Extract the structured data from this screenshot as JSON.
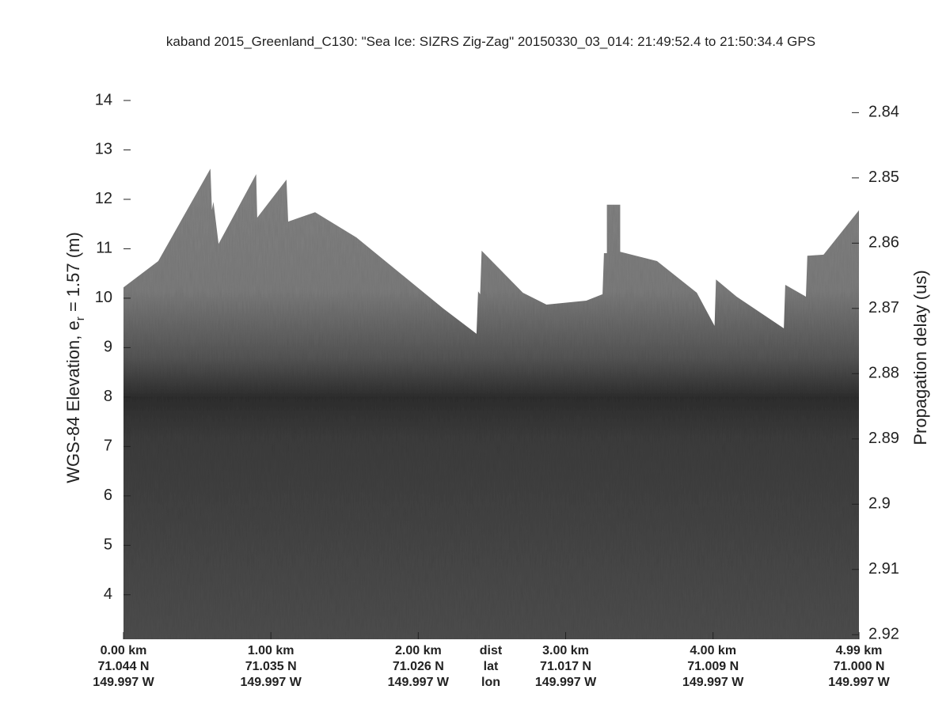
{
  "chart_data": {
    "type": "echogram",
    "title": "kaband 2015_Greenland_C130: \"Sea Ice: SIZRS Zig-Zag\"  20150330_03_014: 21:49:52.4 to 21:50:34.4 GPS",
    "ylabel": [
      "WGS-84 Elevation, e",
      "r",
      " = 1.57 (m)"
    ],
    "y2label": "Propagation delay (us)",
    "xlim": [
      0,
      4.99
    ],
    "xticks": [
      {
        "value": 0,
        "label": "0.00 km"
      },
      {
        "value": 1,
        "label": "1.00 km"
      },
      {
        "value": 2,
        "label": "2.00 km"
      },
      {
        "value": 3,
        "label": "3.00 km"
      },
      {
        "value": 4,
        "label": "4.00 km"
      },
      {
        "value": 4.99,
        "label": "4.99 km"
      }
    ],
    "xtick_lat": [
      "71.044 N",
      "71.035 N",
      "71.026 N",
      "71.017 N",
      "71.009 N",
      "71.000 N"
    ],
    "xtick_lon": [
      "149.997 W",
      "149.997 W",
      "149.997 W",
      "149.997 W",
      "149.997 W",
      "149.997 W"
    ],
    "xaxis_labels": [
      "dist",
      "lat",
      "lon"
    ],
    "ylim": [
      3.1,
      14.48
    ],
    "yticks": [
      4,
      5,
      6,
      7,
      8,
      9,
      10,
      11,
      12,
      13,
      14
    ],
    "y2lim": [
      2.9207,
      2.8345
    ],
    "y2ticks": [
      2.84,
      2.85,
      2.86,
      2.87,
      2.88,
      2.89,
      2.9,
      2.91,
      2.92
    ],
    "series": [
      {
        "name": "surface",
        "color": "#858585",
        "x": [
          0,
          0.236,
          0.59,
          0.6,
          0.61,
          0.645,
          0.9,
          0.907,
          1.106,
          1.117,
          1.3,
          1.58,
          2.17,
          2.395,
          2.406,
          2.42,
          2.43,
          2.71,
          2.87,
          3.14,
          3.25,
          3.26,
          3.28,
          3.28,
          3.37,
          3.37,
          3.62,
          3.89,
          4.01,
          4.02,
          4.16,
          4.48,
          4.49,
          4.63,
          4.64,
          4.75,
          4.99
        ],
        "values": [
          10.22,
          10.75,
          12.62,
          11.79,
          11.95,
          11.1,
          12.51,
          11.63,
          12.4,
          11.55,
          11.74,
          11.23,
          9.79,
          9.28,
          10.14,
          10.08,
          10.96,
          10.11,
          9.87,
          9.95,
          10.08,
          10.91,
          10.91,
          11.89,
          11.89,
          10.94,
          10.75,
          10.11,
          9.44,
          10.38,
          10.03,
          9.39,
          10.27,
          10.03,
          10.86,
          10.88,
          11.78
        ]
      }
    ]
  }
}
